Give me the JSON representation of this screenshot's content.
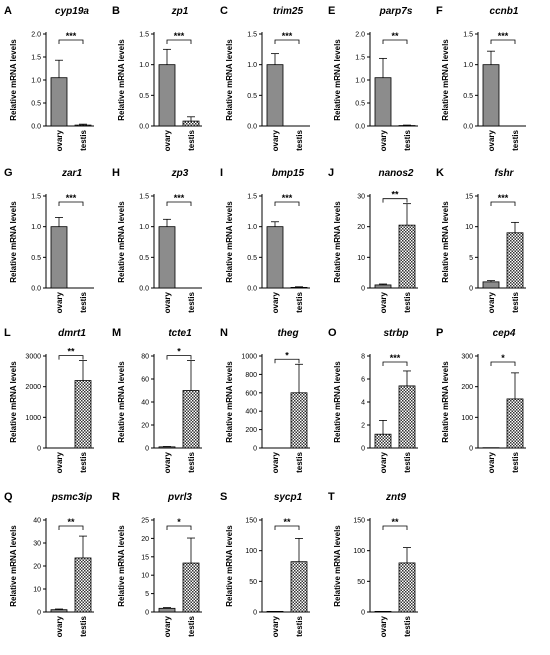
{
  "chart_data": [
    {
      "letter": "A",
      "title": "cyp19a",
      "type": "bar",
      "categories": [
        "ovary",
        "testis"
      ],
      "values": [
        1.05,
        0.02
      ],
      "errors": [
        0.38,
        0.02
      ],
      "ylim": [
        0,
        2.0
      ],
      "ticks": [
        "0.0",
        "0.5",
        "1.0",
        "1.5",
        "2.0"
      ],
      "ylabel": "Relative mRNA levels",
      "significance": "***",
      "patterns": [
        "solid",
        "checker"
      ]
    },
    {
      "letter": "B",
      "title": "zp1",
      "type": "bar",
      "categories": [
        "ovary",
        "testis"
      ],
      "values": [
        1.0,
        0.08
      ],
      "errors": [
        0.25,
        0.07
      ],
      "ylim": [
        0,
        1.5
      ],
      "ticks": [
        "0.0",
        "0.5",
        "1.0",
        "1.5"
      ],
      "ylabel": "Relative mRNA levels",
      "significance": "***",
      "patterns": [
        "solid",
        "checker"
      ]
    },
    {
      "letter": "C",
      "title": "trim25",
      "type": "bar",
      "categories": [
        "ovary",
        "testis"
      ],
      "values": [
        1.0,
        0.0
      ],
      "errors": [
        0.18,
        0.0
      ],
      "ylim": [
        0,
        1.5
      ],
      "ticks": [
        "0.0",
        "0.5",
        "1.0",
        "1.5"
      ],
      "ylabel": "Relative mRNA levels",
      "significance": "***",
      "patterns": [
        "solid",
        "checker"
      ]
    },
    {
      "letter": "E",
      "title": "parp7s",
      "type": "bar",
      "categories": [
        "ovary",
        "testis"
      ],
      "values": [
        1.05,
        0.01
      ],
      "errors": [
        0.42,
        0.01
      ],
      "ylim": [
        0,
        2.0
      ],
      "ticks": [
        "0.0",
        "0.5",
        "1.0",
        "1.5",
        "2.0"
      ],
      "ylabel": "Relative mRNA levels",
      "significance": "**",
      "patterns": [
        "solid",
        "checker"
      ]
    },
    {
      "letter": "F",
      "title": "ccnb1",
      "type": "bar",
      "categories": [
        "ovary",
        "testis"
      ],
      "values": [
        1.0,
        0.0
      ],
      "errors": [
        0.22,
        0.0
      ],
      "ylim": [
        0,
        1.5
      ],
      "ticks": [
        "0.0",
        "0.5",
        "1.0",
        "1.5"
      ],
      "ylabel": "Relative mRNA levels",
      "significance": "***",
      "patterns": [
        "solid",
        "checker"
      ]
    },
    {
      "letter": "G",
      "title": "zar1",
      "type": "bar",
      "categories": [
        "ovary",
        "testis"
      ],
      "values": [
        1.0,
        0.0
      ],
      "errors": [
        0.15,
        0.0
      ],
      "ylim": [
        0,
        1.5
      ],
      "ticks": [
        "0.0",
        "0.5",
        "1.0",
        "1.5"
      ],
      "ylabel": "Relative mRNA levels",
      "significance": "***",
      "patterns": [
        "solid",
        "checker"
      ]
    },
    {
      "letter": "H",
      "title": "zp3",
      "type": "bar",
      "categories": [
        "ovary",
        "testis"
      ],
      "values": [
        1.0,
        0.0
      ],
      "errors": [
        0.12,
        0.0
      ],
      "ylim": [
        0,
        1.5
      ],
      "ticks": [
        "0.0",
        "0.5",
        "1.0",
        "1.5"
      ],
      "ylabel": "Relative mRNA levels",
      "significance": "***",
      "patterns": [
        "solid",
        "checker"
      ]
    },
    {
      "letter": "I",
      "title": "bmp15",
      "type": "bar",
      "categories": [
        "ovary",
        "testis"
      ],
      "values": [
        1.0,
        0.01
      ],
      "errors": [
        0.08,
        0.01
      ],
      "ylim": [
        0,
        1.5
      ],
      "ticks": [
        "0.0",
        "0.5",
        "1.0",
        "1.5"
      ],
      "ylabel": "Relative mRNA levels",
      "significance": "***",
      "patterns": [
        "solid",
        "checker"
      ]
    },
    {
      "letter": "J",
      "title": "nanos2",
      "type": "bar",
      "categories": [
        "ovary",
        "testis"
      ],
      "values": [
        1.0,
        20.5
      ],
      "errors": [
        0.3,
        7.0
      ],
      "ylim": [
        0,
        30
      ],
      "ticks": [
        "0",
        "10",
        "20",
        "30"
      ],
      "ylabel": "Relative mRNA levels",
      "significance": "**",
      "patterns": [
        "solid",
        "checker"
      ]
    },
    {
      "letter": "K",
      "title": "fshr",
      "type": "bar",
      "categories": [
        "ovary",
        "testis"
      ],
      "values": [
        1.0,
        9.0
      ],
      "errors": [
        0.2,
        1.7
      ],
      "ylim": [
        0,
        15
      ],
      "ticks": [
        "0",
        "5",
        "10",
        "15"
      ],
      "ylabel": "Relative mRNA levels",
      "significance": "***",
      "patterns": [
        "solid",
        "checker"
      ]
    },
    {
      "letter": "L",
      "title": "dmrt1",
      "type": "bar",
      "categories": [
        "ovary",
        "testis"
      ],
      "values": [
        1,
        2200
      ],
      "errors": [
        0,
        650
      ],
      "ylim": [
        0,
        3000
      ],
      "ticks": [
        "0",
        "1000",
        "2000",
        "3000"
      ],
      "ylabel": "Relative mRNA levels",
      "significance": "**",
      "patterns": [
        "solid",
        "checker"
      ]
    },
    {
      "letter": "M",
      "title": "tcte1",
      "type": "bar",
      "categories": [
        "ovary",
        "testis"
      ],
      "values": [
        1.0,
        50
      ],
      "errors": [
        0.3,
        26
      ],
      "ylim": [
        0,
        80
      ],
      "ticks": [
        "0",
        "20",
        "40",
        "60",
        "80"
      ],
      "ylabel": "Relative mRNA levels",
      "significance": "*",
      "patterns": [
        "solid",
        "checker"
      ]
    },
    {
      "letter": "N",
      "title": "theg",
      "type": "bar",
      "categories": [
        "ovary",
        "testis"
      ],
      "values": [
        1,
        600
      ],
      "errors": [
        0,
        310
      ],
      "ylim": [
        0,
        1000
      ],
      "ticks": [
        "0",
        "200",
        "400",
        "600",
        "800",
        "1000"
      ],
      "ylabel": "Relative mRNA levels",
      "significance": "*",
      "patterns": [
        "solid",
        "checker"
      ]
    },
    {
      "letter": "O",
      "title": "strbp",
      "type": "bar",
      "categories": [
        "ovary",
        "testis"
      ],
      "values": [
        1.2,
        5.4
      ],
      "errors": [
        1.2,
        1.3
      ],
      "ylim": [
        0,
        8
      ],
      "ticks": [
        "0",
        "2",
        "4",
        "6",
        "8"
      ],
      "ylabel": "Relative mRNA levels",
      "significance": "***",
      "patterns": [
        "checker",
        "checker"
      ]
    },
    {
      "letter": "P",
      "title": "cep4",
      "type": "bar",
      "categories": [
        "ovary",
        "testis"
      ],
      "values": [
        1,
        160
      ],
      "errors": [
        0,
        85
      ],
      "ylim": [
        0,
        300
      ],
      "ticks": [
        "0",
        "100",
        "200",
        "300"
      ],
      "ylabel": "Relative mRNA levels",
      "significance": "*",
      "patterns": [
        "solid",
        "checker"
      ]
    },
    {
      "letter": "Q",
      "title": "psmc3ip",
      "type": "bar",
      "categories": [
        "ovary",
        "testis"
      ],
      "values": [
        1.0,
        23.5
      ],
      "errors": [
        0.3,
        9.5
      ],
      "ylim": [
        0,
        40
      ],
      "ticks": [
        "0",
        "10",
        "20",
        "30",
        "40"
      ],
      "ylabel": "Relative mRNA levels",
      "significance": "**",
      "patterns": [
        "solid",
        "checker"
      ]
    },
    {
      "letter": "R",
      "title": "pvrl3",
      "type": "bar",
      "categories": [
        "ovary",
        "testis"
      ],
      "values": [
        1.0,
        13.3
      ],
      "errors": [
        0.2,
        6.8
      ],
      "ylim": [
        0,
        25
      ],
      "ticks": [
        "0",
        "5",
        "10",
        "15",
        "20",
        "25"
      ],
      "ylabel": "Relative mRNA levels",
      "significance": "*",
      "patterns": [
        "solid",
        "checker"
      ]
    },
    {
      "letter": "S",
      "title": "sycp1",
      "type": "bar",
      "categories": [
        "ovary",
        "testis"
      ],
      "values": [
        1,
        82
      ],
      "errors": [
        0,
        38
      ],
      "ylim": [
        0,
        150
      ],
      "ticks": [
        "0",
        "50",
        "100",
        "150"
      ],
      "ylabel": "Relative mRNA levels",
      "significance": "**",
      "patterns": [
        "solid",
        "checker"
      ]
    },
    {
      "letter": "T",
      "title": "znt9",
      "type": "bar",
      "categories": [
        "ovary",
        "testis"
      ],
      "values": [
        1,
        80
      ],
      "errors": [
        0,
        25
      ],
      "ylim": [
        0,
        150
      ],
      "ticks": [
        "0",
        "50",
        "100",
        "150"
      ],
      "ylabel": "Relative mRNA levels",
      "significance": "**",
      "patterns": [
        "solid",
        "checker"
      ]
    }
  ]
}
